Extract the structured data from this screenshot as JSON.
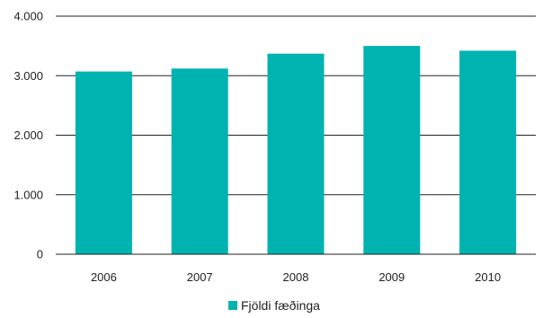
{
  "chart_data": {
    "type": "bar",
    "categories": [
      "2006",
      "2007",
      "2008",
      "2009",
      "2010"
    ],
    "series": [
      {
        "name": "Fjöldi fæðinga",
        "values": [
          3070,
          3120,
          3370,
          3500,
          3420
        ],
        "color": "#00B3B0"
      }
    ],
    "ylim": [
      0,
      4000
    ],
    "yticks": [
      0,
      1000,
      2000,
      3000,
      4000
    ],
    "ytick_labels": [
      "0",
      "1.000",
      "2.000",
      "3.000",
      "4.000"
    ],
    "grid": true,
    "legend_position": "bottom-center",
    "gridline_color": "#222222"
  }
}
